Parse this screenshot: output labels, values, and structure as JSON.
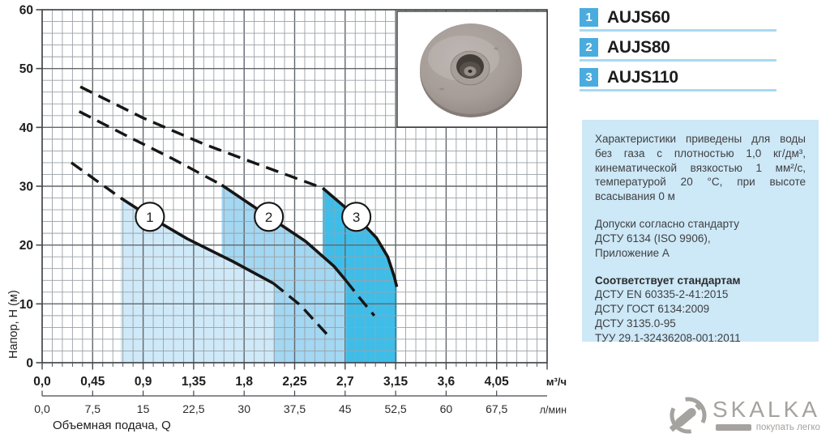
{
  "legend": {
    "items": [
      {
        "num": "1",
        "label": "AUJS60"
      },
      {
        "num": "2",
        "label": "AUJS80"
      },
      {
        "num": "3",
        "label": "AUJS110"
      }
    ]
  },
  "info_box": {
    "p1": "Характеристики приведены для воды без газа с плотностью 1,0 кг/дм³, кинематической вязкостью 1 мм²/с, температурой 20 °С, при высоте всасывания 0 м",
    "p2_lines": [
      "Допуски согласно стандарту",
      "ДСТУ 6134 (ISO 9906),",
      "Приложение А"
    ],
    "p3_title": "Соответствует стандартам",
    "p3_lines": [
      "ДСТУ EN 60335-2-41:2015",
      "ДСТУ ГОСТ 6134:2009",
      "ДСТУ 3135.0-95",
      "ТУУ 29.1-32436208-001:2011"
    ]
  },
  "logo": {
    "name": "SKALKA",
    "tagline": "покупать легко"
  },
  "chart_data": {
    "type": "line",
    "title": "",
    "x_axis": {
      "title": "Объемная подача, Q",
      "unit_top": "м³/ч",
      "unit_bottom": "л/мин",
      "range_m3h": [
        0,
        4.5
      ],
      "ticks_m3h": {
        "values": [
          0,
          0.45,
          0.9,
          1.35,
          1.8,
          2.25,
          2.7,
          3.15,
          3.6,
          4.05
        ],
        "labels": [
          "0,0",
          "0,45",
          "0,9",
          "1,35",
          "1,8",
          "2,25",
          "2,7",
          "3,15",
          "3,6",
          "4,05"
        ]
      },
      "ticks_lmin": {
        "labels": [
          "0,0",
          "7,5",
          "15",
          "22,5",
          "30",
          "37,5",
          "45",
          "52,5",
          "60",
          "67,5"
        ]
      }
    },
    "y_axis": {
      "title": "Напор, H (м)",
      "ticks": [
        0,
        10,
        20,
        30,
        40,
        50,
        60
      ],
      "range": [
        0,
        60
      ]
    },
    "grid": {
      "on": true,
      "minor_x_step": 0.09,
      "minor_y_step": 2,
      "major_x_step": 0.45,
      "major_y_step": 10
    },
    "series": [
      {
        "num": "1",
        "name": "AUJS60",
        "marker": [
          0.96,
          24.8
        ],
        "band_color": "#cfe9f8",
        "dash_pre": [
          [
            0.26,
            34
          ],
          [
            0.48,
            31
          ],
          [
            0.7,
            28
          ]
        ],
        "solid": [
          [
            0.7,
            28
          ],
          [
            0.96,
            24.8
          ],
          [
            1.29,
            21.1
          ],
          [
            1.7,
            17.2
          ],
          [
            2.06,
            13.5
          ]
        ],
        "dash_post": [
          [
            2.06,
            13.5
          ],
          [
            2.3,
            9.8
          ],
          [
            2.54,
            4.8
          ]
        ],
        "recommended_range_m3h": [
          0.7,
          2.05
        ]
      },
      {
        "num": "2",
        "name": "AUJS80",
        "marker": [
          2.02,
          24.8
        ],
        "band_color": "#a3d7f2",
        "dash_pre": [
          [
            0.33,
            42.7
          ],
          [
            0.75,
            38.6
          ],
          [
            1.17,
            34.6
          ],
          [
            1.6,
            30.2
          ]
        ],
        "solid": [
          [
            1.6,
            30.2
          ],
          [
            2.02,
            24.8
          ],
          [
            2.35,
            20.6
          ],
          [
            2.6,
            16.4
          ],
          [
            2.71,
            13.9
          ]
        ],
        "dash_post": [
          [
            2.71,
            13.9
          ],
          [
            2.83,
            11.0
          ],
          [
            2.96,
            8.0
          ]
        ],
        "recommended_range_m3h": [
          1.6,
          2.7
        ]
      },
      {
        "num": "3",
        "name": "AUJS110",
        "marker": [
          2.8,
          24.8
        ],
        "band_color": "#3fbde9",
        "dash_pre": [
          [
            0.34,
            46.9
          ],
          [
            0.9,
            41.6
          ],
          [
            1.45,
            37.1
          ],
          [
            1.97,
            33.4
          ],
          [
            2.5,
            29.7
          ]
        ],
        "solid": [
          [
            2.5,
            29.7
          ],
          [
            2.8,
            24.8
          ],
          [
            2.98,
            21.2
          ],
          [
            3.08,
            18.0
          ],
          [
            3.14,
            14.5
          ],
          [
            3.16,
            12.9
          ]
        ],
        "recommended_range_m3h": [
          2.5,
          3.15
        ]
      }
    ]
  }
}
